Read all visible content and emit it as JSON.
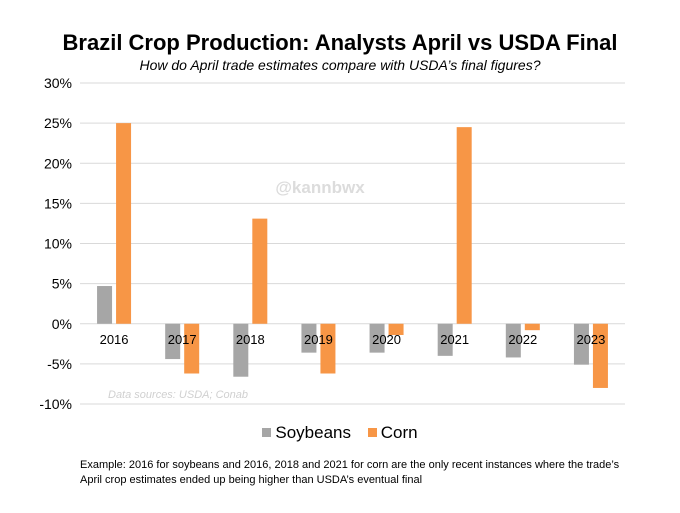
{
  "chart_data": {
    "type": "bar",
    "title": "Brazil Crop Production: Analysts April vs USDA Final",
    "subtitle": "How do April trade estimates compare with USDA’s final figures?",
    "categories": [
      "2016",
      "2017",
      "2018",
      "2019",
      "2020",
      "2021",
      "2022",
      "2023"
    ],
    "series": [
      {
        "name": "Soybeans",
        "color": "#a6a6a6",
        "values": [
          4.7,
          -4.4,
          -6.6,
          -3.6,
          -3.6,
          -4.0,
          -4.2,
          -5.1
        ]
      },
      {
        "name": "Corn",
        "color": "#f79646",
        "values": [
          25.0,
          -6.2,
          null,
          -6.2,
          -1.4,
          24.5,
          -0.8,
          -8.0
        ]
      }
    ],
    "extra_bars": [
      {
        "series": "Corn",
        "category": "2018",
        "value": 13.1
      }
    ],
    "ylim": [
      -10,
      30
    ],
    "yticks": [
      "-10%",
      "-5%",
      "0%",
      "5%",
      "10%",
      "15%",
      "20%",
      "25%",
      "30%"
    ],
    "ytick_values": [
      -10,
      -5,
      0,
      5,
      10,
      15,
      20,
      25,
      30
    ],
    "grid": true,
    "legend_position": "bottom",
    "watermark": "@kannbwx",
    "source_note": "Data sources: USDA; Conab",
    "footnote": "Example: 2016 for soybeans and 2016, 2018 and 2021 for corn are the only recent instances where the trade’s April crop estimates ended up being higher than USDA’s eventual final"
  }
}
